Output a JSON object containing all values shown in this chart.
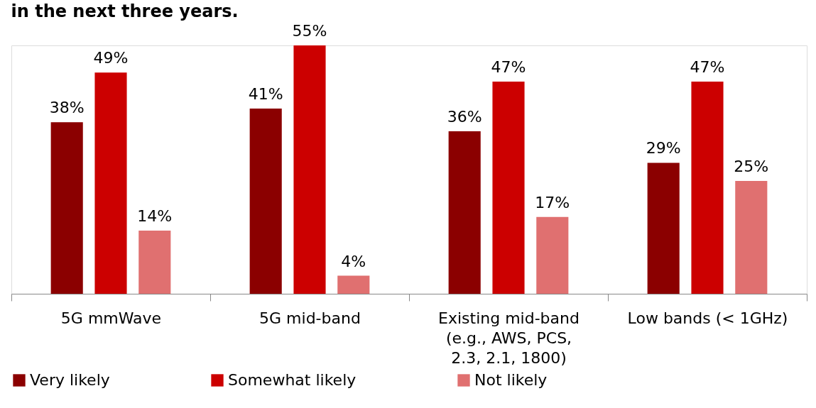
{
  "chart_data": {
    "type": "bar",
    "title": "in the next three years.",
    "categories": [
      "5G mmWave",
      "5G mid-band",
      "Existing mid-band\n(e.g., AWS, PCS,\n2.3, 2.1, 1800)",
      "Low bands (< 1GHz)"
    ],
    "series": [
      {
        "name": "Very likely",
        "color": "#8b0000",
        "values": [
          38,
          41,
          36,
          29
        ],
        "value_labels": [
          "38%",
          "41%",
          "36%",
          "29%"
        ]
      },
      {
        "name": "Somewhat likely",
        "color": "#cc0000",
        "values": [
          49,
          55,
          47,
          47
        ],
        "value_labels": [
          "49%",
          "55%",
          "47%",
          "47%"
        ]
      },
      {
        "name": "Not likely",
        "color": "#e07070",
        "values": [
          14,
          4,
          17,
          25
        ],
        "value_labels": [
          "14%",
          "4%",
          "17%",
          "25%"
        ]
      }
    ],
    "legend": "bottom"
  }
}
